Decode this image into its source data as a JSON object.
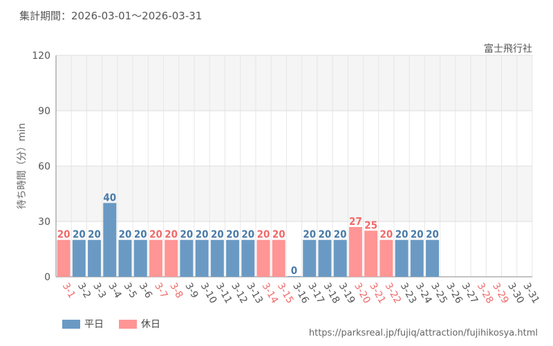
{
  "period_label": "集計期間：2026-03-01～2026-03-31",
  "attraction_name": "富士飛行社",
  "source_url": "https://parksreal.jp/fujiq/attraction/fujihikosya.html",
  "legend": {
    "weekday": "平日",
    "holiday": "休日"
  },
  "colors": {
    "weekday": "#6a9ac4",
    "holiday": "#ff9595",
    "weekday_text": "#4a7ba8",
    "holiday_text": "#f06a6a"
  },
  "chart_data": {
    "type": "bar",
    "ylabel": "待ち時間（分）min",
    "ylim": [
      0,
      120
    ],
    "yticks": [
      0,
      30,
      60,
      90,
      120
    ],
    "categories": [
      "3-1",
      "3-2",
      "3-3",
      "3-4",
      "3-5",
      "3-6",
      "3-7",
      "3-8",
      "3-9",
      "3-10",
      "3-11",
      "3-12",
      "3-13",
      "3-14",
      "3-15",
      "3-16",
      "3-17",
      "3-18",
      "3-19",
      "3-20",
      "3-21",
      "3-22",
      "3-23",
      "3-24",
      "3-25",
      "3-26",
      "3-27",
      "3-28",
      "3-29",
      "3-30",
      "3-31"
    ],
    "values": [
      20,
      20,
      20,
      40,
      20,
      20,
      20,
      20,
      20,
      20,
      20,
      20,
      20,
      20,
      20,
      0,
      20,
      20,
      20,
      27,
      25,
      20,
      20,
      20,
      20,
      null,
      null,
      null,
      null,
      null,
      null
    ],
    "day_type": [
      "holiday",
      "weekday",
      "weekday",
      "weekday",
      "weekday",
      "weekday",
      "holiday",
      "holiday",
      "weekday",
      "weekday",
      "weekday",
      "weekday",
      "weekday",
      "holiday",
      "holiday",
      "weekday",
      "weekday",
      "weekday",
      "weekday",
      "holiday",
      "holiday",
      "holiday",
      "weekday",
      "weekday",
      "weekday",
      "weekday",
      "weekday",
      "holiday",
      "holiday",
      "weekday",
      "weekday"
    ]
  }
}
